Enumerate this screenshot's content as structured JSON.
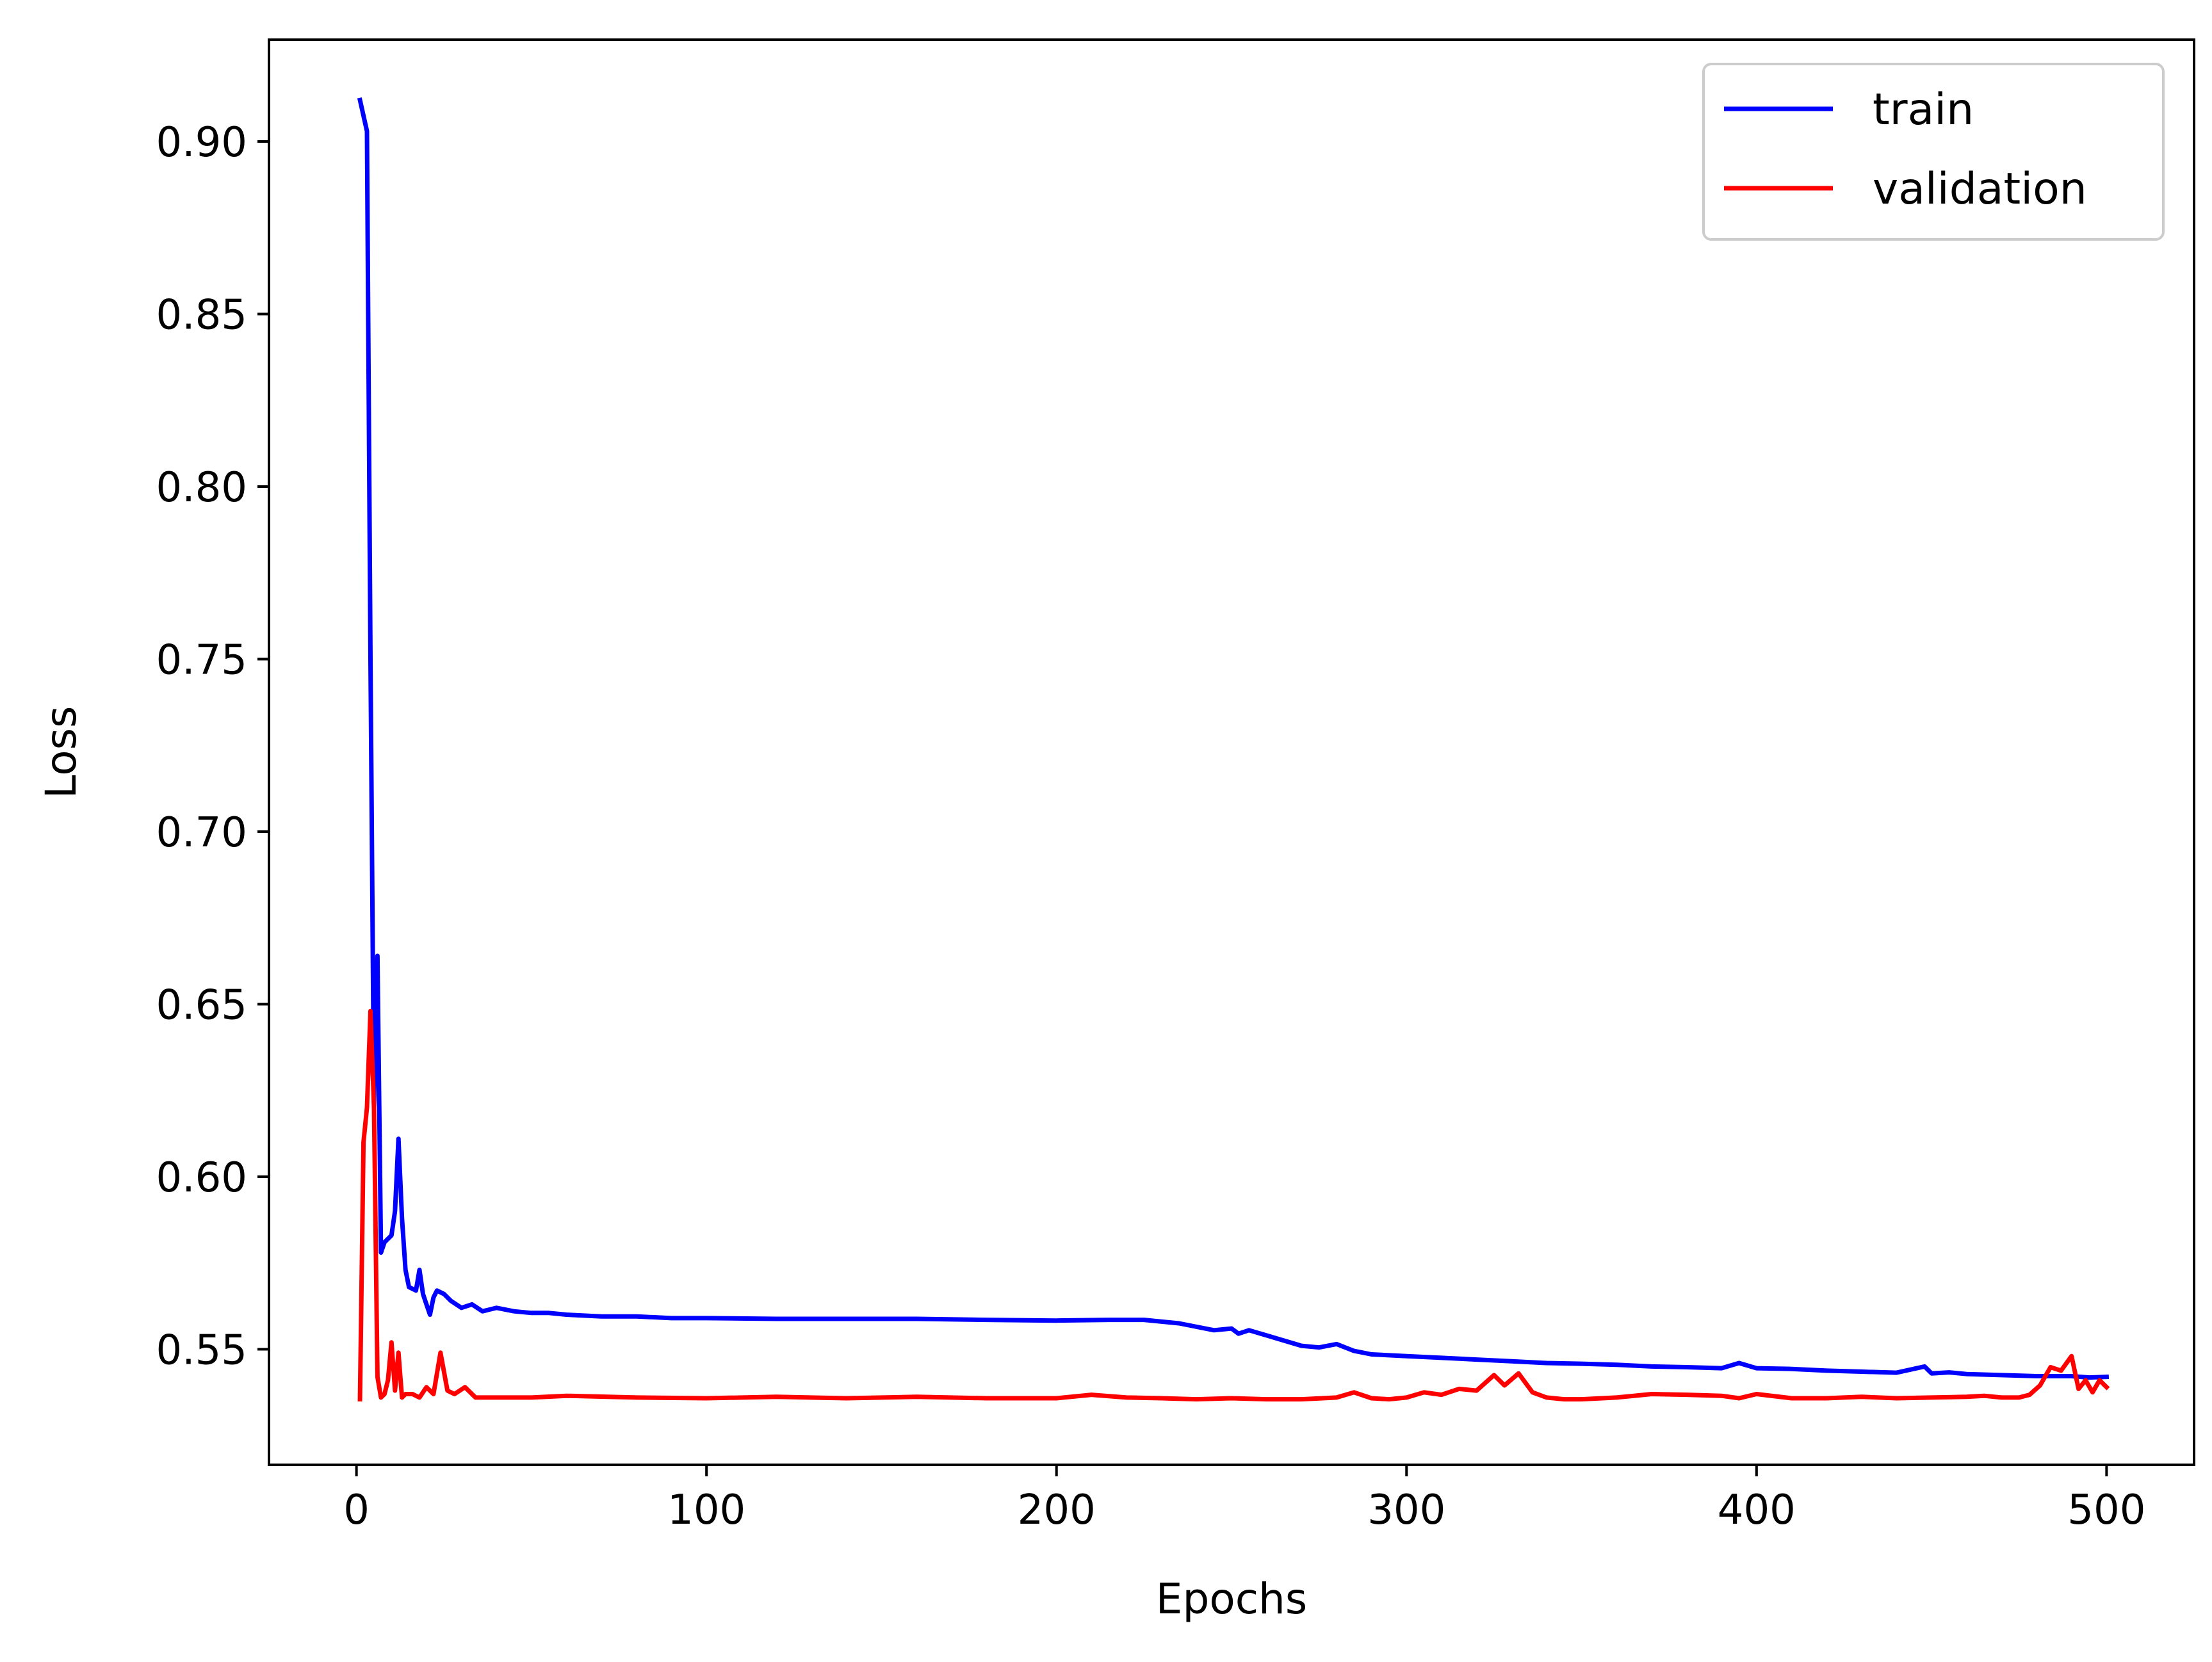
{
  "chart_data": {
    "type": "line",
    "title": "",
    "xlabel": "Epochs",
    "ylabel": "Loss",
    "xlim": [
      -25,
      525
    ],
    "ylim": [
      0.5165,
      0.9295
    ],
    "xticks": [
      0,
      100,
      200,
      300,
      400,
      500
    ],
    "xtick_labels": [
      "0",
      "100",
      "200",
      "300",
      "400",
      "500"
    ],
    "yticks": [
      0.55,
      0.6,
      0.65,
      0.7,
      0.75,
      0.8,
      0.85,
      0.9
    ],
    "ytick_labels": [
      "0.55",
      "0.60",
      "0.65",
      "0.70",
      "0.75",
      "0.80",
      "0.85",
      "0.90"
    ],
    "grid": false,
    "legend_position": "top-right",
    "series": [
      {
        "name": "train",
        "color": "#0000ff",
        "x": [
          1,
          3,
          4,
          5,
          6,
          7,
          8,
          10,
          11,
          12,
          13,
          14,
          15,
          17,
          18,
          19,
          20,
          21,
          22,
          23,
          25,
          27,
          30,
          33,
          36,
          40,
          45,
          50,
          55,
          60,
          70,
          80,
          90,
          100,
          120,
          140,
          160,
          180,
          200,
          215,
          225,
          235,
          245,
          250,
          252,
          255,
          260,
          265,
          270,
          275,
          280,
          285,
          290,
          300,
          310,
          320,
          330,
          340,
          350,
          360,
          370,
          380,
          390,
          395,
          400,
          410,
          420,
          430,
          440,
          448,
          450,
          455,
          460,
          470,
          480,
          490,
          495,
          500
        ],
        "y": [
          0.912,
          0.903,
          0.75,
          0.62,
          0.664,
          0.578,
          0.581,
          0.583,
          0.59,
          0.611,
          0.588,
          0.573,
          0.568,
          0.567,
          0.573,
          0.566,
          0.563,
          0.56,
          0.565,
          0.567,
          0.566,
          0.564,
          0.562,
          0.563,
          0.561,
          0.562,
          0.561,
          0.5605,
          0.5605,
          0.56,
          0.5595,
          0.5595,
          0.559,
          0.559,
          0.5588,
          0.5588,
          0.5588,
          0.5585,
          0.5583,
          0.5585,
          0.5585,
          0.5575,
          0.5555,
          0.556,
          0.5545,
          0.5555,
          0.554,
          0.5525,
          0.551,
          0.5505,
          0.5515,
          0.5495,
          0.5485,
          0.548,
          0.5475,
          0.547,
          0.5465,
          0.546,
          0.5458,
          0.5455,
          0.545,
          0.5448,
          0.5445,
          0.546,
          0.5445,
          0.5443,
          0.5438,
          0.5435,
          0.5432,
          0.545,
          0.543,
          0.5433,
          0.5428,
          0.5425,
          0.5422,
          0.5422,
          0.5418,
          0.542
        ]
      },
      {
        "name": "validation",
        "color": "#ff0000",
        "x": [
          1,
          2,
          3,
          4,
          5,
          6,
          7,
          8,
          9,
          10,
          11,
          12,
          13,
          14,
          16,
          18,
          20,
          22,
          24,
          26,
          28,
          31,
          34,
          40,
          50,
          60,
          80,
          100,
          120,
          140,
          160,
          180,
          200,
          210,
          220,
          230,
          240,
          250,
          260,
          270,
          280,
          285,
          290,
          295,
          300,
          305,
          310,
          315,
          320,
          325,
          328,
          332,
          336,
          340,
          345,
          350,
          360,
          370,
          380,
          390,
          395,
          400,
          410,
          420,
          430,
          440,
          450,
          460,
          465,
          470,
          475,
          478,
          481,
          484,
          487,
          490,
          492,
          494,
          496,
          498,
          500
        ],
        "y": [
          0.5355,
          0.61,
          0.62,
          0.648,
          0.62,
          0.542,
          0.536,
          0.537,
          0.541,
          0.552,
          0.538,
          0.549,
          0.536,
          0.537,
          0.537,
          0.536,
          0.539,
          0.537,
          0.549,
          0.538,
          0.537,
          0.539,
          0.536,
          0.536,
          0.536,
          0.5365,
          0.536,
          0.5358,
          0.5362,
          0.5358,
          0.5362,
          0.5358,
          0.5358,
          0.5368,
          0.536,
          0.5358,
          0.5355,
          0.5358,
          0.5355,
          0.5355,
          0.536,
          0.5375,
          0.5358,
          0.5355,
          0.536,
          0.5375,
          0.5368,
          0.5385,
          0.538,
          0.5425,
          0.5395,
          0.543,
          0.5375,
          0.536,
          0.5355,
          0.5355,
          0.536,
          0.537,
          0.5368,
          0.5365,
          0.5358,
          0.537,
          0.5358,
          0.5358,
          0.5362,
          0.5358,
          0.536,
          0.5362,
          0.5365,
          0.536,
          0.536,
          0.5368,
          0.5395,
          0.5448,
          0.5438,
          0.548,
          0.5385,
          0.541,
          0.5375,
          0.541,
          0.539
        ]
      }
    ]
  }
}
